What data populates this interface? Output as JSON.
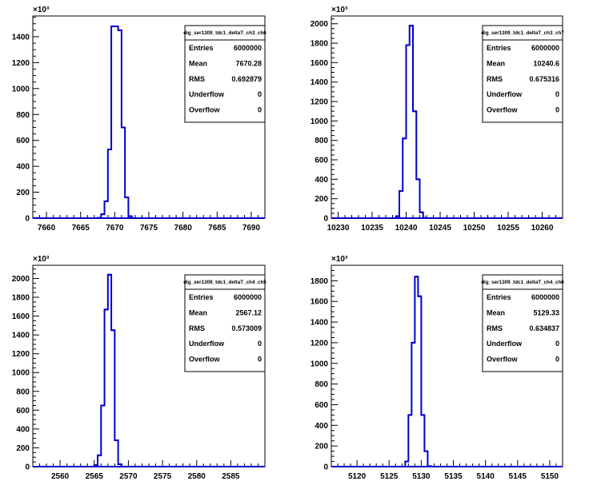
{
  "colors": {
    "histogram_line": "#0000cc",
    "axis": "#000000",
    "background": "#ffffff"
  },
  "chart_data": [
    {
      "type": "histogram",
      "title": "dig_ser1309_tdc1_deltaT_ch3_ch6",
      "y_exponent_label": "×10³",
      "stats": [
        {
          "label": "Entries",
          "value": "6000000"
        },
        {
          "label": "Mean",
          "value": "7670.28"
        },
        {
          "label": "RMS",
          "value": "0.692879"
        },
        {
          "label": "Underflow",
          "value": "0"
        },
        {
          "label": "Overflow",
          "value": "0"
        }
      ],
      "xlim": [
        7658,
        7692
      ],
      "ylim": [
        0,
        1560
      ],
      "x_ticks": [
        7660,
        7665,
        7670,
        7675,
        7680,
        7685,
        7690
      ],
      "x_tick_labels": [
        "7660",
        "7665",
        "7670",
        "7675",
        "7680",
        "7685",
        "7690"
      ],
      "y_ticks": [
        0,
        200,
        400,
        600,
        800,
        1000,
        1200,
        1400
      ],
      "y_tick_labels": [
        "0",
        "200",
        "400",
        "600",
        "800",
        "1000",
        "1200",
        "1400"
      ],
      "bin_width": 0.5,
      "bins": [
        {
          "x": 7667.5,
          "y": 2
        },
        {
          "x": 7668.0,
          "y": 30
        },
        {
          "x": 7668.5,
          "y": 130
        },
        {
          "x": 7669.0,
          "y": 530
        },
        {
          "x": 7669.5,
          "y": 1480
        },
        {
          "x": 7670.0,
          "y": 1480
        },
        {
          "x": 7670.5,
          "y": 1450
        },
        {
          "x": 7671.0,
          "y": 700
        },
        {
          "x": 7671.5,
          "y": 160
        },
        {
          "x": 7672.0,
          "y": 15
        },
        {
          "x": 7672.5,
          "y": 1
        }
      ]
    },
    {
      "type": "histogram",
      "title": "dig_ser1309_tdc1_deltaT_ch3_ch7",
      "y_exponent_label": "×10³",
      "stats": [
        {
          "label": "Entries",
          "value": "6000000"
        },
        {
          "label": "Mean",
          "value": "10240.6"
        },
        {
          "label": "RMS",
          "value": "0.675316"
        },
        {
          "label": "Underflow",
          "value": "0"
        },
        {
          "label": "Overflow",
          "value": "0"
        }
      ],
      "xlim": [
        10229,
        10263
      ],
      "ylim": [
        0,
        2080
      ],
      "x_ticks": [
        10230,
        10235,
        10240,
        10245,
        10250,
        10255,
        10260
      ],
      "x_tick_labels": [
        "10230",
        "10235",
        "10240",
        "10245",
        "10250",
        "10255",
        "10260"
      ],
      "y_ticks": [
        0,
        200,
        400,
        600,
        800,
        1000,
        1200,
        1400,
        1600,
        1800,
        2000
      ],
      "y_tick_labels": [
        "0",
        "200",
        "400",
        "600",
        "800",
        "1000",
        "1200",
        "1400",
        "1600",
        "1800",
        "2000"
      ],
      "bin_width": 0.5,
      "bins": [
        {
          "x": 10238.5,
          "y": 20
        },
        {
          "x": 10239.0,
          "y": 280
        },
        {
          "x": 10239.5,
          "y": 820
        },
        {
          "x": 10240.0,
          "y": 1780
        },
        {
          "x": 10240.5,
          "y": 1980
        },
        {
          "x": 10241.0,
          "y": 1100
        },
        {
          "x": 10241.5,
          "y": 400
        },
        {
          "x": 10242.0,
          "y": 60
        },
        {
          "x": 10242.5,
          "y": 3
        }
      ]
    },
    {
      "type": "histogram",
      "title": "dig_ser1309_tdc1_deltaT_ch4_ch5",
      "y_exponent_label": "×10³",
      "stats": [
        {
          "label": "Entries",
          "value": "6000000"
        },
        {
          "label": "Mean",
          "value": "2567.12"
        },
        {
          "label": "RMS",
          "value": "0.573009"
        },
        {
          "label": "Underflow",
          "value": "0"
        },
        {
          "label": "Overflow",
          "value": "0"
        }
      ],
      "xlim": [
        2556,
        2590
      ],
      "ylim": [
        0,
        2140
      ],
      "x_ticks": [
        2560,
        2565,
        2570,
        2575,
        2580,
        2585
      ],
      "x_tick_labels": [
        "2560",
        "2565",
        "2570",
        "2575",
        "2580",
        "2585"
      ],
      "y_ticks": [
        0,
        200,
        400,
        600,
        800,
        1000,
        1200,
        1400,
        1600,
        1800,
        2000
      ],
      "y_tick_labels": [
        "0",
        "200",
        "400",
        "600",
        "800",
        "1000",
        "1200",
        "1400",
        "1600",
        "1800",
        "2000"
      ],
      "bin_width": 0.5,
      "bins": [
        {
          "x": 2565.0,
          "y": 15
        },
        {
          "x": 2565.5,
          "y": 120
        },
        {
          "x": 2566.0,
          "y": 650
        },
        {
          "x": 2566.5,
          "y": 1670
        },
        {
          "x": 2567.0,
          "y": 2040
        },
        {
          "x": 2567.5,
          "y": 1450
        },
        {
          "x": 2568.0,
          "y": 280
        },
        {
          "x": 2568.5,
          "y": 25
        }
      ]
    },
    {
      "type": "histogram",
      "title": "dig_ser1309_tdc1_deltaT_ch4_ch6",
      "y_exponent_label": "×10³",
      "stats": [
        {
          "label": "Entries",
          "value": "6000000"
        },
        {
          "label": "Mean",
          "value": "5129.33"
        },
        {
          "label": "RMS",
          "value": "0.634837"
        },
        {
          "label": "Underflow",
          "value": "0"
        },
        {
          "label": "Overflow",
          "value": "0"
        }
      ],
      "xlim": [
        5116,
        5152
      ],
      "ylim": [
        0,
        1950
      ],
      "x_ticks": [
        5120,
        5125,
        5130,
        5135,
        5140,
        5145,
        5150
      ],
      "x_tick_labels": [
        "5120",
        "5125",
        "5130",
        "5135",
        "5140",
        "5145",
        "5150"
      ],
      "y_ticks": [
        0,
        200,
        400,
        600,
        800,
        1000,
        1200,
        1400,
        1600,
        1800
      ],
      "y_tick_labels": [
        "0",
        "200",
        "400",
        "600",
        "800",
        "1000",
        "1200",
        "1400",
        "1600",
        "1800"
      ],
      "bin_width": 0.5,
      "bins": [
        {
          "x": 5127.5,
          "y": 50
        },
        {
          "x": 5128.0,
          "y": 500
        },
        {
          "x": 5128.5,
          "y": 1200
        },
        {
          "x": 5129.0,
          "y": 1840
        },
        {
          "x": 5129.5,
          "y": 1650
        },
        {
          "x": 5130.0,
          "y": 500
        },
        {
          "x": 5130.5,
          "y": 150
        },
        {
          "x": 5131.0,
          "y": 5
        }
      ]
    }
  ]
}
